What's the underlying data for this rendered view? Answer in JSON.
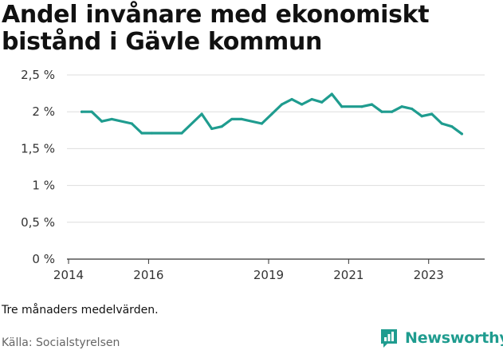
{
  "title": "Andel invånare med ekonomiskt bistånd i Gävle kommun",
  "note": "Tre månaders medelvärden.",
  "source": "Källa: Socialstyrelsen",
  "brand": {
    "name": "Newsworthy",
    "icon": "newsworthy-chart-icon",
    "color": "#1f9c8f"
  },
  "chart_data": {
    "type": "line",
    "title": "Andel invånare med ekonomiskt bistånd i Gävle kommun",
    "xlabel": "",
    "ylabel": "",
    "ylim": [
      0,
      2.5
    ],
    "y_ticks": [
      {
        "value": 0,
        "label": "0 %"
      },
      {
        "value": 0.5,
        "label": "0,5 %"
      },
      {
        "value": 1,
        "label": "1 %"
      },
      {
        "value": 1.5,
        "label": "1,5 %"
      },
      {
        "value": 2,
        "label": "2 %"
      },
      {
        "value": 2.5,
        "label": "2,5 %"
      }
    ],
    "x_ticks": [
      {
        "value": 2014,
        "label": "2014"
      },
      {
        "value": 2016,
        "label": "2016"
      },
      {
        "value": 2019,
        "label": "2019"
      },
      {
        "value": 2021,
        "label": "2021"
      },
      {
        "value": 2023,
        "label": "2023"
      }
    ],
    "xlim": [
      2013.96,
      2024.4
    ],
    "grid": "horizontal",
    "line_color": "#1f9c8f",
    "series": [
      {
        "points": [
          {
            "x": 2014.33,
            "y": 2.0
          },
          {
            "x": 2014.58,
            "y": 2.0
          },
          {
            "x": 2014.83,
            "y": 1.87
          },
          {
            "x": 2015.08,
            "y": 1.9
          },
          {
            "x": 2015.58,
            "y": 1.84
          },
          {
            "x": 2015.83,
            "y": 1.71
          },
          {
            "x": 2016.08,
            "y": 1.71
          },
          {
            "x": 2016.83,
            "y": 1.71
          },
          {
            "x": 2017.33,
            "y": 1.97
          },
          {
            "x": 2017.58,
            "y": 1.77
          },
          {
            "x": 2017.83,
            "y": 1.8
          },
          {
            "x": 2018.08,
            "y": 1.9
          },
          {
            "x": 2018.33,
            "y": 1.9
          },
          {
            "x": 2018.83,
            "y": 1.84
          },
          {
            "x": 2019.08,
            "y": 1.97
          },
          {
            "x": 2019.33,
            "y": 2.1
          },
          {
            "x": 2019.58,
            "y": 2.17
          },
          {
            "x": 2019.83,
            "y": 2.1
          },
          {
            "x": 2020.08,
            "y": 2.17
          },
          {
            "x": 2020.33,
            "y": 2.13
          },
          {
            "x": 2020.58,
            "y": 2.24
          },
          {
            "x": 2020.83,
            "y": 2.07
          },
          {
            "x": 2021.33,
            "y": 2.07
          },
          {
            "x": 2021.58,
            "y": 2.1
          },
          {
            "x": 2021.83,
            "y": 2.0
          },
          {
            "x": 2022.08,
            "y": 2.0
          },
          {
            "x": 2022.33,
            "y": 2.07
          },
          {
            "x": 2022.58,
            "y": 2.04
          },
          {
            "x": 2022.83,
            "y": 1.94
          },
          {
            "x": 2023.08,
            "y": 1.97
          },
          {
            "x": 2023.33,
            "y": 1.84
          },
          {
            "x": 2023.58,
            "y": 1.8
          },
          {
            "x": 2023.83,
            "y": 1.7
          }
        ]
      }
    ]
  }
}
